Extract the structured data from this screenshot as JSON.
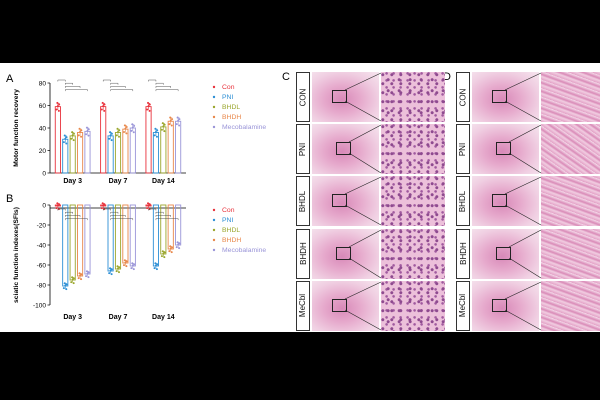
{
  "panels": {
    "A": "A",
    "B": "B",
    "C": "C",
    "D": "D"
  },
  "colors": {
    "Con": "#e8323c",
    "PNI": "#2d8fd5",
    "BHDL": "#9aa62c",
    "BHDH": "#e8874a",
    "Mecobalamine": "#9a95d8"
  },
  "chart_data": [
    {
      "type": "bar",
      "ylabel": "Motor function recovery",
      "categories": [
        "Day 3",
        "Day 7",
        "Day 14"
      ],
      "ylim": [
        0,
        80
      ],
      "yticks": [
        "0",
        "20",
        "40",
        "60",
        "80"
      ],
      "legend": "right",
      "series": [
        {
          "name": "Con",
          "values": [
            59,
            59,
            59
          ]
        },
        {
          "name": "PNI",
          "values": [
            30,
            33,
            36
          ]
        },
        {
          "name": "BHDL",
          "values": [
            33,
            36,
            41
          ]
        },
        {
          "name": "BHDH",
          "values": [
            36,
            39,
            46
          ]
        },
        {
          "name": "Mecobalamine",
          "values": [
            37,
            40,
            46
          ]
        }
      ]
    },
    {
      "type": "bar",
      "ylabel": "sciatic function indexes(SFIs)",
      "categories": [
        "Day 3",
        "Day 7",
        "Day 14"
      ],
      "ylim": [
        -100,
        0
      ],
      "yticks": [
        "0",
        "-20",
        "-40",
        "-60",
        "-80",
        "-100"
      ],
      "legend": "right",
      "series": [
        {
          "name": "Con",
          "values": [
            -1,
            -1,
            -1
          ]
        },
        {
          "name": "PNI",
          "values": [
            -81,
            -66,
            -61
          ]
        },
        {
          "name": "BHDL",
          "values": [
            -75,
            -64,
            -49
          ]
        },
        {
          "name": "BHDH",
          "values": [
            -71,
            -58,
            -44
          ]
        },
        {
          "name": "Mecobalamine",
          "values": [
            -69,
            -61,
            -40
          ]
        }
      ]
    }
  ],
  "histology": {
    "C": [
      "CON",
      "PNI",
      "BHDL",
      "BHDH",
      "MeCbl"
    ],
    "D": [
      "CON",
      "PNI",
      "BHDL",
      "BHDH",
      "MeCbl"
    ]
  }
}
